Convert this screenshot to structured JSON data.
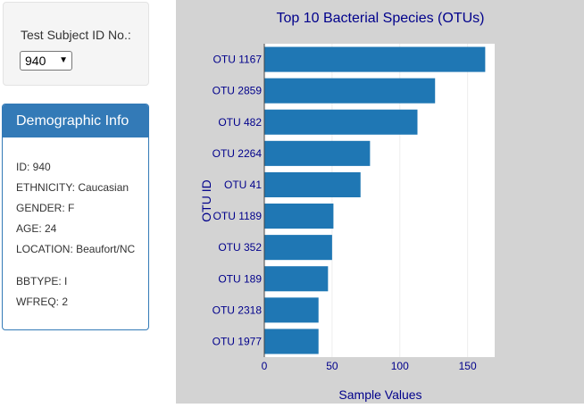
{
  "selector": {
    "label": "Test Subject ID No.:",
    "selected_value": "940"
  },
  "demographics": {
    "heading": "Demographic Info",
    "lines": [
      "ID: 940",
      "ETHNICITY: Caucasian",
      "GENDER: F",
      "AGE: 24",
      "LOCATION: Beaufort/NC",
      "BBTYPE: I",
      "WFREQ: 2"
    ]
  },
  "colors": {
    "accent": "#337ab7",
    "bar": "#1f77b4",
    "chart_text": "#00008b",
    "chart_bg": "#d3d3d3"
  },
  "chart_data": {
    "type": "bar",
    "orientation": "horizontal",
    "title": "Top 10 Bacterial Species (OTUs)",
    "xlabel": "Sample Values",
    "ylabel": "OTU ID",
    "categories": [
      "OTU 1167",
      "OTU 2859",
      "OTU 482",
      "OTU 2264",
      "OTU 41",
      "OTU 1189",
      "OTU 352",
      "OTU 189",
      "OTU 2318",
      "OTU 1977"
    ],
    "values": [
      163,
      126,
      113,
      78,
      71,
      51,
      50,
      47,
      40,
      40
    ],
    "xlim": [
      0,
      170
    ],
    "xticks": [
      0,
      50,
      100,
      150
    ],
    "grid": true
  }
}
